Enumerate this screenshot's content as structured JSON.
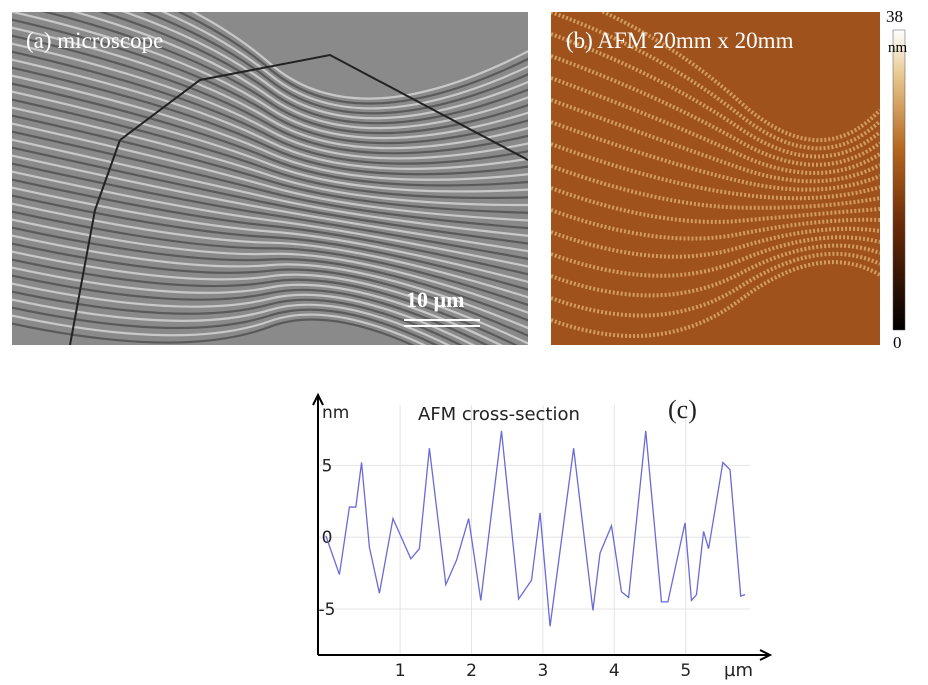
{
  "panel_a": {
    "label": "(a) microscope",
    "scale_bar": "10 µm"
  },
  "panel_b": {
    "label": "(b) AFM 20mm x 20mm",
    "colorbar": {
      "max": "38",
      "unit": "nm",
      "min": "0"
    }
  },
  "chart_data": {
    "type": "line",
    "title": "AFM cross-section",
    "annotation": "(c)",
    "y_label": "nm",
    "x_label": "µm",
    "x": [
      -0.04,
      0.15,
      0.29,
      0.38,
      0.46,
      0.57,
      0.71,
      0.9,
      1.15,
      1.27,
      1.41,
      1.64,
      1.79,
      1.96,
      2.13,
      2.42,
      2.66,
      2.84,
      2.96,
      3.1,
      3.43,
      3.7,
      3.8,
      3.96,
      4.1,
      4.2,
      4.44,
      4.66,
      4.75,
      4.99,
      5.08,
      5.15,
      5.25,
      5.32,
      5.52,
      5.62,
      5.77,
      5.83
    ],
    "series": [
      {
        "color": "#6a6ad8",
        "values": [
          0.1,
          -2.6,
          2.1,
          2.1,
          5.2,
          -0.7,
          -3.9,
          1.3,
          -1.5,
          -0.8,
          6.2,
          -3.3,
          -1.6,
          1.3,
          -4.4,
          7.4,
          -4.3,
          -3.0,
          1.7,
          -6.2,
          6.2,
          -5.1,
          -1.1,
          0.8,
          -3.8,
          -4.2,
          7.4,
          -4.5,
          -4.5,
          1.0,
          -4.4,
          -4.0,
          0.4,
          -0.8,
          5.2,
          4.7,
          -4.1,
          -4.0
        ]
      }
    ],
    "xlim": [
      -0.15,
      6.18
    ],
    "ylim": [
      -8.2,
      9.9
    ],
    "xticks": [
      1,
      2,
      3,
      4,
      5
    ],
    "yticks": [
      5,
      0,
      -5
    ],
    "grid": true
  }
}
